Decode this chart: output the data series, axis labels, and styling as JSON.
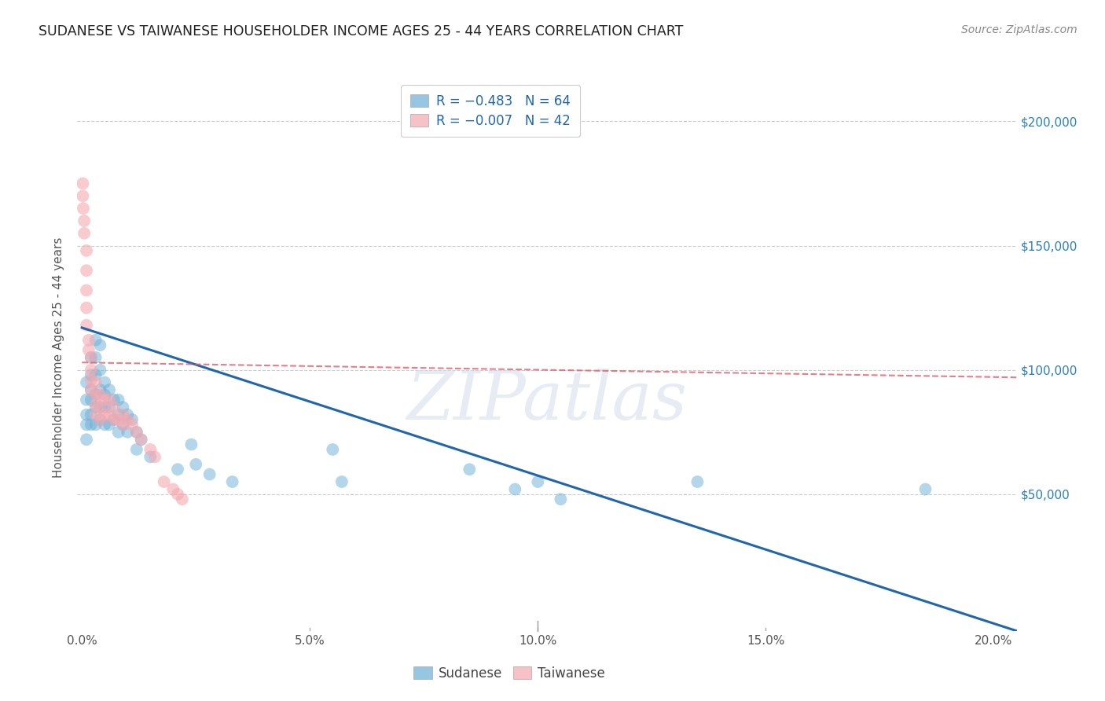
{
  "title": "SUDANESE VS TAIWANESE HOUSEHOLDER INCOME AGES 25 - 44 YEARS CORRELATION CHART",
  "source": "Source: ZipAtlas.com",
  "ylabel": "Householder Income Ages 25 - 44 years",
  "xlabel_ticks": [
    "0.0%",
    "",
    "",
    "",
    "",
    "5.0%",
    "",
    "",
    "",
    "",
    "10.0%",
    "",
    "",
    "",
    "",
    "15.0%",
    "",
    "",
    "",
    "",
    "20.0%"
  ],
  "xlabel_vals": [
    0.0,
    0.01,
    0.02,
    0.03,
    0.04,
    0.05,
    0.06,
    0.07,
    0.08,
    0.09,
    0.1,
    0.11,
    0.12,
    0.13,
    0.14,
    0.15,
    0.16,
    0.17,
    0.18,
    0.19,
    0.2
  ],
  "ylabel_ticks": [
    "$200,000",
    "$150,000",
    "$100,000",
    "$50,000"
  ],
  "ylabel_vals": [
    200000,
    150000,
    100000,
    50000
  ],
  "ylim": [
    -5000,
    215000
  ],
  "xlim": [
    -0.001,
    0.205
  ],
  "sudanese_color": "#6baed6",
  "taiwanese_color": "#f4a9b0",
  "watermark_text": "ZIPatlas",
  "blue_line_x": [
    0.0,
    0.205
  ],
  "blue_line_y": [
    117000,
    -5000
  ],
  "pink_line_x": [
    0.0,
    0.205
  ],
  "pink_line_y": [
    103000,
    97000
  ],
  "grid_color": "#cccccc",
  "background_color": "#ffffff",
  "sudanese_x": [
    0.001,
    0.001,
    0.001,
    0.001,
    0.001,
    0.002,
    0.002,
    0.002,
    0.002,
    0.002,
    0.002,
    0.003,
    0.003,
    0.003,
    0.003,
    0.003,
    0.003,
    0.004,
    0.004,
    0.004,
    0.004,
    0.004,
    0.005,
    0.005,
    0.005,
    0.005,
    0.006,
    0.006,
    0.006,
    0.007,
    0.007,
    0.008,
    0.008,
    0.008,
    0.009,
    0.009,
    0.01,
    0.01,
    0.011,
    0.012,
    0.012,
    0.013,
    0.015,
    0.021,
    0.024,
    0.025,
    0.028,
    0.033,
    0.055,
    0.057,
    0.085,
    0.095,
    0.1,
    0.105,
    0.135,
    0.185
  ],
  "sudanese_y": [
    95000,
    88000,
    82000,
    78000,
    72000,
    105000,
    98000,
    92000,
    88000,
    82000,
    78000,
    112000,
    105000,
    98000,
    90000,
    85000,
    78000,
    110000,
    100000,
    92000,
    85000,
    80000,
    95000,
    90000,
    85000,
    78000,
    92000,
    85000,
    78000,
    88000,
    80000,
    88000,
    82000,
    75000,
    85000,
    78000,
    82000,
    75000,
    80000,
    75000,
    68000,
    72000,
    65000,
    60000,
    70000,
    62000,
    58000,
    55000,
    68000,
    55000,
    60000,
    52000,
    55000,
    48000,
    55000,
    52000
  ],
  "taiwanese_x": [
    0.0002,
    0.0002,
    0.0003,
    0.0005,
    0.0005,
    0.001,
    0.001,
    0.001,
    0.001,
    0.001,
    0.0015,
    0.0015,
    0.002,
    0.002,
    0.002,
    0.002,
    0.003,
    0.003,
    0.003,
    0.003,
    0.004,
    0.004,
    0.004,
    0.005,
    0.005,
    0.006,
    0.006,
    0.007,
    0.007,
    0.008,
    0.009,
    0.009,
    0.01,
    0.011,
    0.012,
    0.013,
    0.015,
    0.016,
    0.018,
    0.02,
    0.021,
    0.022
  ],
  "taiwanese_y": [
    175000,
    170000,
    165000,
    160000,
    155000,
    148000,
    140000,
    132000,
    125000,
    118000,
    112000,
    108000,
    105000,
    100000,
    96000,
    92000,
    95000,
    90000,
    86000,
    82000,
    90000,
    85000,
    80000,
    88000,
    82000,
    88000,
    82000,
    85000,
    80000,
    80000,
    82000,
    78000,
    80000,
    78000,
    75000,
    72000,
    68000,
    65000,
    55000,
    52000,
    50000,
    48000
  ]
}
